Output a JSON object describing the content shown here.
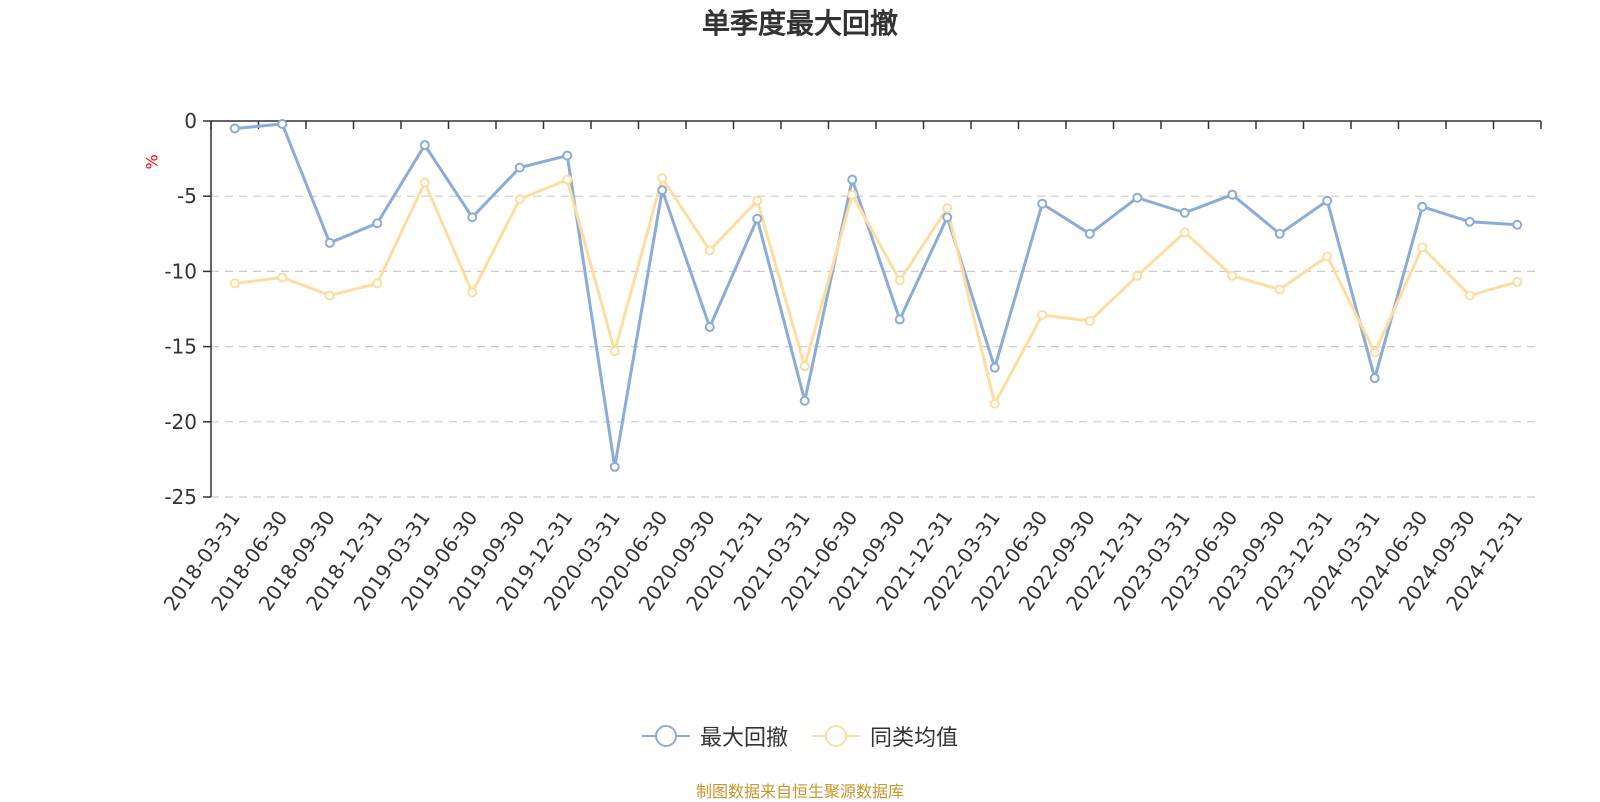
{
  "chart_data": {
    "type": "line",
    "title": "单季度最大回撤",
    "ylabel": "%",
    "ylim": [
      -25,
      0
    ],
    "yticks": [
      0,
      -5,
      -10,
      -15,
      -20,
      -25
    ],
    "grid": true,
    "legend_position": "bottom",
    "categories": [
      "2018-03-31",
      "2018-06-30",
      "2018-09-30",
      "2018-12-31",
      "2019-03-31",
      "2019-06-30",
      "2019-09-30",
      "2019-12-31",
      "2020-03-31",
      "2020-06-30",
      "2020-09-30",
      "2020-12-31",
      "2021-03-31",
      "2021-06-30",
      "2021-09-30",
      "2021-12-31",
      "2022-03-31",
      "2022-06-30",
      "2022-09-30",
      "2022-12-31",
      "2023-03-31",
      "2023-06-30",
      "2023-09-30",
      "2023-12-31",
      "2024-03-31",
      "2024-06-30",
      "2024-09-30",
      "2024-12-31"
    ],
    "series": [
      {
        "name": "最大回撤",
        "color": "#8cacd8",
        "values": [
          -0.5,
          -0.2,
          -8.1,
          -6.8,
          -1.6,
          -6.4,
          -3.1,
          -2.3,
          -23.0,
          -4.6,
          -13.7,
          -6.5,
          -18.6,
          -3.9,
          -13.2,
          -6.4,
          -16.4,
          -5.5,
          -7.5,
          -5.1,
          -6.1,
          -4.9,
          -7.5,
          -5.3,
          -17.1,
          -5.7,
          -6.7,
          -6.9
        ]
      },
      {
        "name": "同类均值",
        "color": "#fddea0",
        "values": [
          -10.8,
          -10.4,
          -11.6,
          -10.8,
          -4.1,
          -11.4,
          -5.2,
          -3.9,
          -15.3,
          -3.8,
          -8.6,
          -5.3,
          -16.3,
          -4.9,
          -10.6,
          -5.8,
          -18.8,
          -12.9,
          -13.3,
          -10.3,
          -7.4,
          -10.3,
          -11.2,
          -9.0,
          -15.4,
          -8.4,
          -11.6,
          -10.7
        ]
      }
    ],
    "source": "制图数据来自恒生聚源数据库"
  },
  "colors": {
    "title": "#333333",
    "axis": "#333333",
    "grid": "#cccccc",
    "ylabel": "#ff0000",
    "source": "#c8962a"
  }
}
